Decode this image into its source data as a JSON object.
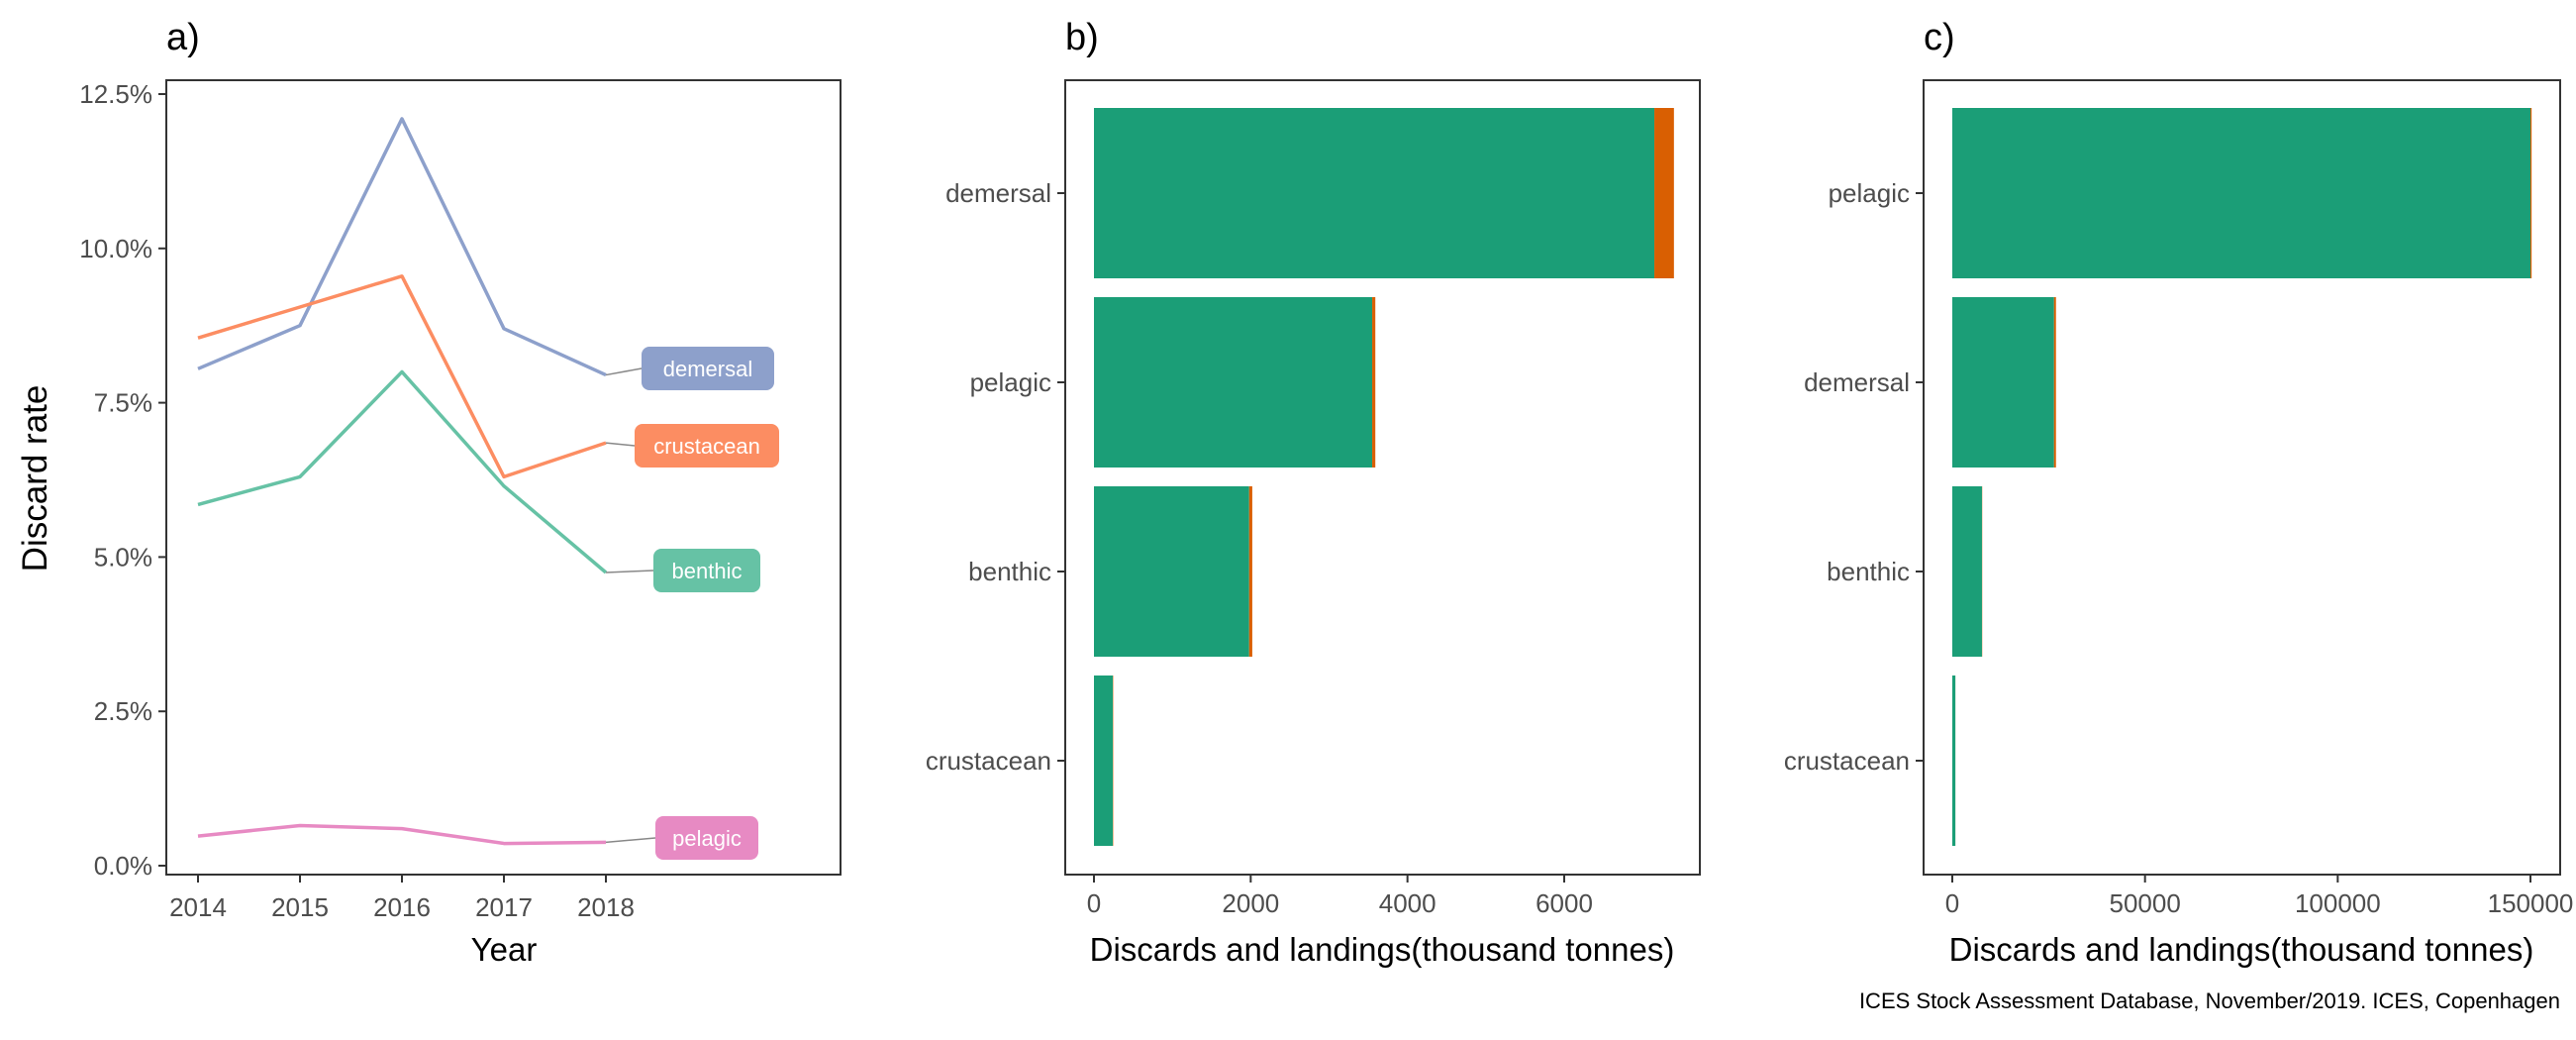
{
  "caption": "ICES Stock Assessment Database, November/2019. ICES, Copenhagen",
  "colors": {
    "demersal": "#8da0cb",
    "crustacean": "#fc8d62",
    "benthic": "#66c2a5",
    "pelagic": "#e78ac3",
    "landings": "#1b9e77",
    "discards": "#d95f02"
  },
  "chart_data": [
    {
      "panel": "a)",
      "type": "line",
      "xlabel": "Year",
      "ylabel": "Discard rate",
      "x": [
        2014,
        2015,
        2016,
        2017,
        2018
      ],
      "xticks": [
        "2014",
        "2015",
        "2016",
        "2017",
        "2018"
      ],
      "ylim": [
        0,
        12.5
      ],
      "yticks": [
        0,
        2.5,
        5,
        7.5,
        10,
        12.5
      ],
      "ytick_labels": [
        "0.0%",
        "2.5%",
        "5.0%",
        "7.5%",
        "10.0%",
        "12.5%"
      ],
      "series": [
        {
          "name": "demersal",
          "values": [
            8.05,
            8.75,
            12.1,
            8.7,
            7.95
          ]
        },
        {
          "name": "crustacean",
          "values": [
            8.55,
            9.05,
            9.55,
            6.3,
            6.85
          ]
        },
        {
          "name": "benthic",
          "values": [
            5.85,
            6.3,
            8.0,
            6.15,
            4.75
          ]
        },
        {
          "name": "pelagic",
          "values": [
            0.48,
            0.65,
            0.6,
            0.36,
            0.38
          ]
        }
      ],
      "legend": "direct labels at line ends",
      "grid": false
    },
    {
      "panel": "b)",
      "type": "bar",
      "orientation": "horizontal",
      "stacked": true,
      "xlabel": "Discards and landings(thousand tonnes)",
      "xlim": [
        0,
        7600
      ],
      "xticks": [
        0,
        2000,
        4000,
        6000
      ],
      "xtick_labels": [
        "0",
        "2000",
        "4000",
        "6000"
      ],
      "categories": [
        "demersal",
        "pelagic",
        "benthic",
        "crustacean"
      ],
      "series": [
        {
          "key": "landings",
          "values": [
            7150,
            3550,
            1980,
            240
          ]
        },
        {
          "key": "discards",
          "values": [
            250,
            40,
            40,
            5
          ]
        }
      ],
      "grid": false
    },
    {
      "panel": "c)",
      "type": "bar",
      "orientation": "horizontal",
      "stacked": true,
      "xlabel": "Discards and landings(thousand tonnes)",
      "xlim": [
        0,
        155000
      ],
      "xticks": [
        0,
        50000,
        100000,
        150000
      ],
      "xtick_labels": [
        "0",
        "50000",
        "100000",
        "150000"
      ],
      "categories": [
        "pelagic",
        "demersal",
        "benthic",
        "crustacean"
      ],
      "series": [
        {
          "key": "landings",
          "values": [
            150000,
            26400,
            7700,
            800
          ]
        },
        {
          "key": "discards",
          "values": [
            300,
            500,
            60,
            10
          ]
        }
      ],
      "grid": false
    }
  ]
}
